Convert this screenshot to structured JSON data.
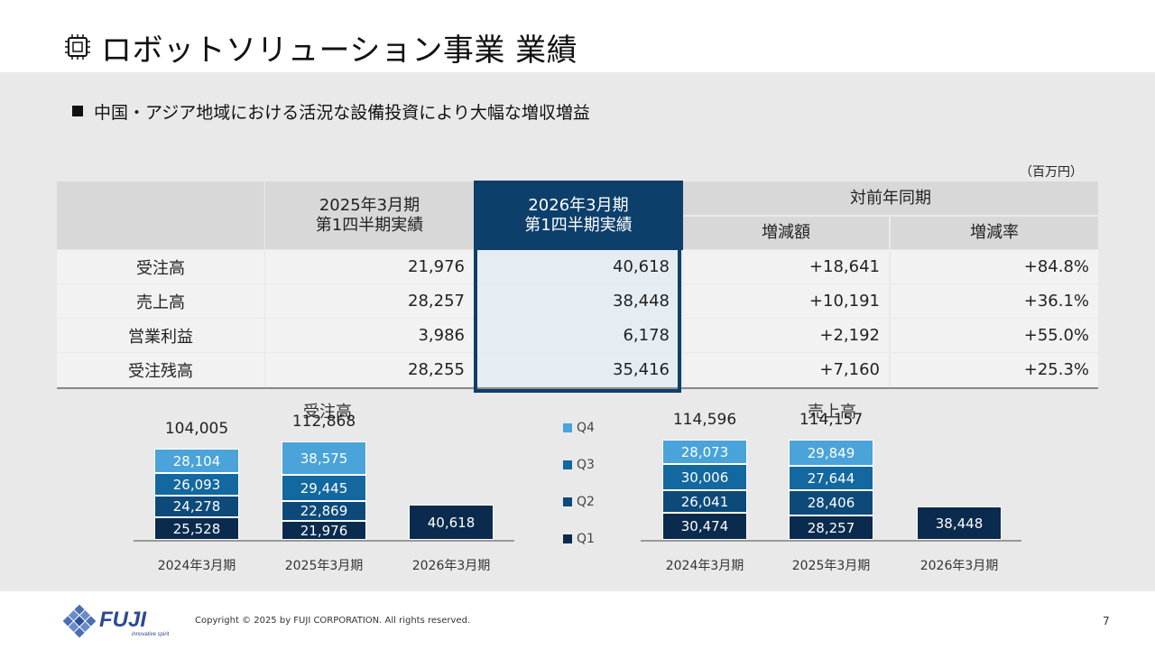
{
  "title": "ロボットソリューション事業 業績",
  "bullet": "中国・アジア地域における活況な設備投資により大幅な増収増益",
  "unit": "（百万円）",
  "table": {
    "headers": {
      "prev": "2025年3月期\n第1四半期実績",
      "curr": "2026年3月期\n第1四半期実績",
      "yoy": "対前年同期",
      "diff": "増減額",
      "rate": "増減率"
    },
    "rows": [
      {
        "label": "受注高",
        "prev": "21,976",
        "curr": "40,618",
        "diff": "+18,641",
        "rate": "+84.8%"
      },
      {
        "label": "売上高",
        "prev": "28,257",
        "curr": "38,448",
        "diff": "+10,191",
        "rate": "+36.1%"
      },
      {
        "label": "営業利益",
        "prev": "3,986",
        "curr": "6,178",
        "diff": "+2,192",
        "rate": "+55.0%"
      },
      {
        "label": "受注残高",
        "prev": "28,255",
        "curr": "35,416",
        "diff": "+7,160",
        "rate": "+25.3%"
      }
    ]
  },
  "legend": [
    {
      "name": "Q4",
      "color": "#4aa3d9"
    },
    {
      "name": "Q3",
      "color": "#12689f"
    },
    {
      "name": "Q2",
      "color": "#0d4a7a"
    },
    {
      "name": "Q1",
      "color": "#0a2b4d"
    }
  ],
  "chart_data": [
    {
      "type": "bar",
      "stacked": true,
      "title": "受注高",
      "categories": [
        "2024年3月期",
        "2025年3月期",
        "2026年3月期"
      ],
      "totals": [
        "104,005",
        "112,868",
        ""
      ],
      "series": [
        {
          "name": "Q1",
          "values": [
            25528,
            21976,
            40618
          ],
          "labels": [
            "25,528",
            "21,976",
            "40,618"
          ]
        },
        {
          "name": "Q2",
          "values": [
            24278,
            22869,
            null
          ],
          "labels": [
            "24,278",
            "22,869",
            ""
          ]
        },
        {
          "name": "Q3",
          "values": [
            26093,
            29445,
            null
          ],
          "labels": [
            "26,093",
            "29,445",
            ""
          ]
        },
        {
          "name": "Q4",
          "values": [
            28104,
            38575,
            null
          ],
          "labels": [
            "28,104",
            "38,575",
            ""
          ]
        }
      ]
    },
    {
      "type": "bar",
      "stacked": true,
      "title": "売上高",
      "categories": [
        "2024年3月期",
        "2025年3月期",
        "2026年3月期"
      ],
      "totals": [
        "114,596",
        "114,157",
        ""
      ],
      "series": [
        {
          "name": "Q1",
          "values": [
            30474,
            28257,
            38448
          ],
          "labels": [
            "30,474",
            "28,257",
            "38,448"
          ]
        },
        {
          "name": "Q2",
          "values": [
            26041,
            28406,
            null
          ],
          "labels": [
            "26,041",
            "28,406",
            ""
          ]
        },
        {
          "name": "Q3",
          "values": [
            30006,
            27644,
            null
          ],
          "labels": [
            "30,006",
            "27,644",
            ""
          ]
        },
        {
          "name": "Q4",
          "values": [
            28073,
            29849,
            null
          ],
          "labels": [
            "28,073",
            "29,849",
            ""
          ]
        }
      ]
    }
  ],
  "footer": {
    "logo_text": "FUJI",
    "logo_tagline": "innovative spirit",
    "copyright": "Copyright © 2025 by FUJI CORPORATION. All rights reserved.",
    "page": "7"
  }
}
